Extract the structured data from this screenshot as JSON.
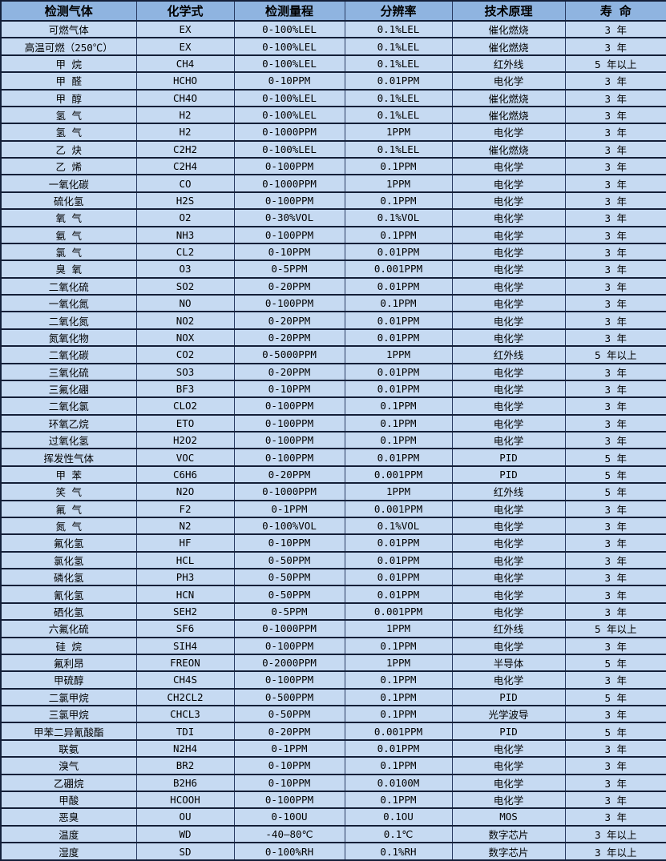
{
  "colors": {
    "header_bg": "#8fb4e0",
    "row_bg": "#c6daf2",
    "border": "#141f38",
    "text": "#000000"
  },
  "table": {
    "headers": [
      "检测气体",
      "化学式",
      "检测量程",
      "分辨率",
      "技术原理",
      "寿 命"
    ],
    "rows": [
      [
        "可燃气体",
        "EX",
        "0-100%LEL",
        "0.1%LEL",
        "催化燃烧",
        "3 年"
      ],
      [
        "高温可燃（250℃）",
        "EX",
        "0-100%LEL",
        "0.1%LEL",
        "催化燃烧",
        "3 年"
      ],
      [
        "甲 烷",
        "CH4",
        "0-100%LEL",
        "0.1%LEL",
        "红外线",
        "5 年以上"
      ],
      [
        "甲 醛",
        "HCHO",
        "0-10PPM",
        "0.01PPM",
        "电化学",
        "3 年"
      ],
      [
        "甲 醇",
        "CH4O",
        "0-100%LEL",
        "0.1%LEL",
        "催化燃烧",
        "3 年"
      ],
      [
        "氢 气",
        "H2",
        "0-100%LEL",
        "0.1%LEL",
        "催化燃烧",
        "3 年"
      ],
      [
        "氢 气",
        "H2",
        "0-1000PPM",
        "1PPM",
        "电化学",
        "3 年"
      ],
      [
        "乙 炔",
        "C2H2",
        "0-100%LEL",
        "0.1%LEL",
        "催化燃烧",
        "3 年"
      ],
      [
        "乙 烯",
        "C2H4",
        "0-100PPM",
        "0.1PPM",
        "电化学",
        "3 年"
      ],
      [
        "一氧化碳",
        "CO",
        "0-1000PPM",
        "1PPM",
        "电化学",
        "3 年"
      ],
      [
        "硫化氢",
        "H2S",
        "0-100PPM",
        "0.1PPM",
        "电化学",
        "3 年"
      ],
      [
        "氧 气",
        "O2",
        "0-30%VOL",
        "0.1%VOL",
        "电化学",
        "3 年"
      ],
      [
        "氨 气",
        "NH3",
        "0-100PPM",
        "0.1PPM",
        "电化学",
        "3 年"
      ],
      [
        "氯 气",
        "CL2",
        "0-10PPM",
        "0.01PPM",
        "电化学",
        "3 年"
      ],
      [
        "臭 氧",
        "O3",
        "0-5PPM",
        "0.001PPM",
        "电化学",
        "3 年"
      ],
      [
        "二氧化硫",
        "SO2",
        "0-20PPM",
        "0.01PPM",
        "电化学",
        "3 年"
      ],
      [
        "一氧化氮",
        "NO",
        "0-100PPM",
        "0.1PPM",
        "电化学",
        "3 年"
      ],
      [
        "二氧化氮",
        "NO2",
        "0-20PPM",
        "0.01PPM",
        "电化学",
        "3 年"
      ],
      [
        "氮氧化物",
        "NOX",
        "0-20PPM",
        "0.01PPM",
        "电化学",
        "3 年"
      ],
      [
        "二氧化碳",
        "CO2",
        "0-5000PPM",
        "1PPM",
        "红外线",
        "5 年以上"
      ],
      [
        "三氧化硫",
        "SO3",
        "0-20PPM",
        "0.01PPM",
        "电化学",
        "3 年"
      ],
      [
        "三氟化硼",
        "BF3",
        "0-10PPM",
        "0.01PPM",
        "电化学",
        "3 年"
      ],
      [
        "二氧化氯",
        "CLO2",
        "0-100PPM",
        "0.1PPM",
        "电化学",
        "3 年"
      ],
      [
        "环氧乙烷",
        "ETO",
        "0-100PPM",
        "0.1PPM",
        "电化学",
        "3 年"
      ],
      [
        "过氧化氢",
        "H2O2",
        "0-100PPM",
        "0.1PPM",
        "电化学",
        "3 年"
      ],
      [
        "挥发性气体",
        "VOC",
        "0-100PPM",
        "0.01PPM",
        "PID",
        "5 年"
      ],
      [
        "甲 苯",
        "C6H6",
        "0-20PPM",
        "0.001PPM",
        "PID",
        "5 年"
      ],
      [
        "笑 气",
        "N2O",
        "0-1000PPM",
        "1PPM",
        "红外线",
        "5 年"
      ],
      [
        "氟 气",
        "F2",
        "0-1PPM",
        "0.001PPM",
        "电化学",
        "3 年"
      ],
      [
        "氮 气",
        "N2",
        "0-100%VOL",
        "0.1%VOL",
        "电化学",
        "3 年"
      ],
      [
        "氟化氢",
        "HF",
        "0-10PPM",
        "0.01PPM",
        "电化学",
        "3 年"
      ],
      [
        "氯化氢",
        "HCL",
        "0-50PPM",
        "0.01PPM",
        "电化学",
        "3 年"
      ],
      [
        "磷化氢",
        "PH3",
        "0-50PPM",
        "0.01PPM",
        "电化学",
        "3 年"
      ],
      [
        "氰化氢",
        "HCN",
        "0-50PPM",
        "0.01PPM",
        "电化学",
        "3 年"
      ],
      [
        "硒化氢",
        "SEH2",
        "0-5PPM",
        "0.001PPM",
        "电化学",
        "3 年"
      ],
      [
        "六氟化硫",
        "SF6",
        "0-1000PPM",
        "1PPM",
        "红外线",
        "5 年以上"
      ],
      [
        "硅 烷",
        "SIH4",
        "0-100PPM",
        "0.1PPM",
        "电化学",
        "3 年"
      ],
      [
        "氟利昂",
        "FREON",
        "0-2000PPM",
        "1PPM",
        "半导体",
        "5 年"
      ],
      [
        "甲硫醇",
        "CH4S",
        "0-100PPM",
        "0.1PPM",
        "电化学",
        "3 年"
      ],
      [
        "二氯甲烷",
        "CH2CL2",
        "0-500PPM",
        "0.1PPM",
        "PID",
        "5 年"
      ],
      [
        "三氯甲烷",
        "CHCL3",
        "0-50PPM",
        "0.1PPM",
        "光学波导",
        "3 年"
      ],
      [
        "甲苯二异氰酸酯",
        "TDI",
        "0-20PPM",
        "0.001PPM",
        "PID",
        "5 年"
      ],
      [
        "联氨",
        "N2H4",
        "0-1PPM",
        "0.01PPM",
        "电化学",
        "3 年"
      ],
      [
        "溴气",
        "BR2",
        "0-10PPM",
        "0.1PPM",
        "电化学",
        "3 年"
      ],
      [
        "乙硼烷",
        "B2H6",
        "0-10PPM",
        "0.0100M",
        "电化学",
        "3 年"
      ],
      [
        "甲酸",
        "HCOOH",
        "0-100PPM",
        "0.1PPM",
        "电化学",
        "3 年"
      ],
      [
        "恶臭",
        "OU",
        "0-10OU",
        "0.1OU",
        "MOS",
        "3 年"
      ],
      [
        "温度",
        "WD",
        "-40—80℃",
        "0.1℃",
        "数字芯片",
        "3 年以上"
      ],
      [
        "湿度",
        "SD",
        "0-100%RH",
        "0.1%RH",
        "数字芯片",
        "3 年以上"
      ]
    ]
  }
}
